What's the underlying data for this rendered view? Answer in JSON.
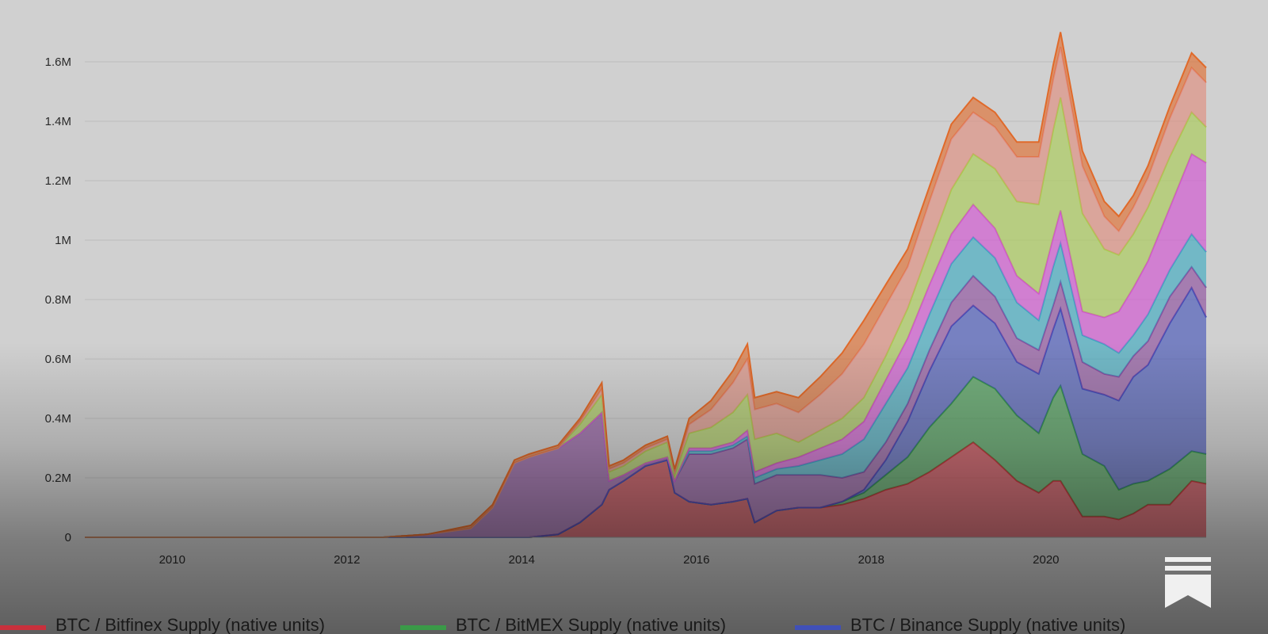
{
  "chart_data": {
    "type": "area",
    "stacked": true,
    "x": [
      "2009-01",
      "2011-06",
      "2012-06",
      "2012-12",
      "2013-06",
      "2013-09",
      "2013-12",
      "2014-02",
      "2014-06",
      "2014-09",
      "2014-12",
      "2015-01",
      "2015-03",
      "2015-06",
      "2015-09",
      "2015-10",
      "2015-12",
      "2016-03",
      "2016-06",
      "2016-08",
      "2016-09",
      "2016-12",
      "2017-03",
      "2017-06",
      "2017-09",
      "2017-12",
      "2018-03",
      "2018-06",
      "2018-09",
      "2018-12",
      "2019-03",
      "2019-06",
      "2019-09",
      "2019-12",
      "2020-02",
      "2020-03",
      "2020-06",
      "2020-09",
      "2020-11",
      "2021-01",
      "2021-03",
      "2021-06",
      "2021-09",
      "2021-11"
    ],
    "series": [
      {
        "name": "BTC / Bitfinex Supply (native units)",
        "color": "#c8303c",
        "values": [
          0,
          0,
          0,
          0,
          0,
          0,
          0,
          0,
          0.01,
          0.05,
          0.11,
          0.16,
          0.19,
          0.24,
          0.26,
          0.15,
          0.12,
          0.11,
          0.12,
          0.13,
          0.05,
          0.09,
          0.1,
          0.1,
          0.11,
          0.13,
          0.16,
          0.18,
          0.22,
          0.27,
          0.32,
          0.26,
          0.19,
          0.15,
          0.19,
          0.19,
          0.07,
          0.07,
          0.06,
          0.08,
          0.11,
          0.11,
          0.19,
          0.18
        ]
      },
      {
        "name": "BTC / BitMEX Supply (native units)",
        "color": "#3a9a48",
        "values": [
          0,
          0,
          0,
          0,
          0,
          0,
          0,
          0,
          0,
          0,
          0,
          0,
          0,
          0,
          0,
          0,
          0,
          0,
          0,
          0,
          0,
          0,
          0,
          0,
          0.01,
          0.02,
          0.05,
          0.09,
          0.15,
          0.18,
          0.22,
          0.24,
          0.22,
          0.2,
          0.28,
          0.32,
          0.21,
          0.17,
          0.1,
          0.1,
          0.08,
          0.12,
          0.1,
          0.1
        ]
      },
      {
        "name": "BTC / Binance Supply (native units)",
        "color": "#4050b8",
        "values": [
          0,
          0,
          0,
          0,
          0,
          0,
          0,
          0,
          0,
          0,
          0,
          0,
          0,
          0,
          0,
          0,
          0,
          0,
          0,
          0,
          0,
          0,
          0,
          0,
          0,
          0.01,
          0.05,
          0.12,
          0.19,
          0.26,
          0.24,
          0.22,
          0.18,
          0.2,
          0.23,
          0.26,
          0.22,
          0.24,
          0.3,
          0.36,
          0.39,
          0.49,
          0.55,
          0.46
        ]
      },
      {
        "name": "",
        "color": "#8a4a9c",
        "values": [
          0,
          0,
          0,
          0.01,
          0.03,
          0.1,
          0.25,
          0.27,
          0.29,
          0.3,
          0.31,
          0.03,
          0.02,
          0.01,
          0.01,
          0.04,
          0.16,
          0.17,
          0.18,
          0.2,
          0.13,
          0.12,
          0.11,
          0.11,
          0.08,
          0.06,
          0.06,
          0.06,
          0.07,
          0.08,
          0.1,
          0.09,
          0.08,
          0.08,
          0.08,
          0.09,
          0.09,
          0.07,
          0.08,
          0.07,
          0.08,
          0.09,
          0.07,
          0.1
        ]
      },
      {
        "name": "",
        "color": "#39a9c0",
        "values": [
          0,
          0,
          0,
          0,
          0,
          0,
          0,
          0,
          0,
          0,
          0,
          0,
          0,
          0,
          0,
          0,
          0.01,
          0.01,
          0.01,
          0.01,
          0.02,
          0.02,
          0.03,
          0.05,
          0.08,
          0.11,
          0.13,
          0.12,
          0.12,
          0.13,
          0.13,
          0.13,
          0.12,
          0.1,
          0.13,
          0.13,
          0.09,
          0.1,
          0.08,
          0.07,
          0.09,
          0.09,
          0.11,
          0.12
        ]
      },
      {
        "name": "",
        "color": "#d24ed2",
        "values": [
          0,
          0,
          0,
          0,
          0,
          0,
          0,
          0,
          0,
          0,
          0,
          0,
          0,
          0,
          0,
          0,
          0.01,
          0.01,
          0.01,
          0.02,
          0.02,
          0.02,
          0.03,
          0.04,
          0.05,
          0.06,
          0.08,
          0.1,
          0.1,
          0.1,
          0.11,
          0.1,
          0.09,
          0.09,
          0.1,
          0.11,
          0.08,
          0.09,
          0.14,
          0.16,
          0.18,
          0.21,
          0.27,
          0.3
        ]
      },
      {
        "name": "",
        "color": "#a8cc50",
        "values": [
          0,
          0,
          0,
          0,
          0,
          0,
          0,
          0,
          0,
          0.03,
          0.06,
          0.03,
          0.03,
          0.04,
          0.05,
          0.02,
          0.05,
          0.07,
          0.1,
          0.12,
          0.11,
          0.1,
          0.05,
          0.06,
          0.07,
          0.08,
          0.08,
          0.1,
          0.12,
          0.15,
          0.17,
          0.2,
          0.25,
          0.3,
          0.36,
          0.38,
          0.33,
          0.23,
          0.19,
          0.18,
          0.18,
          0.17,
          0.14,
          0.12
        ]
      },
      {
        "name": "",
        "color": "#e08a7a",
        "values": [
          0,
          0,
          0,
          0,
          0,
          0,
          0,
          0,
          0,
          0.01,
          0.02,
          0.01,
          0.01,
          0.01,
          0.01,
          0.01,
          0.03,
          0.06,
          0.1,
          0.12,
          0.1,
          0.1,
          0.1,
          0.12,
          0.15,
          0.18,
          0.17,
          0.14,
          0.16,
          0.17,
          0.14,
          0.14,
          0.15,
          0.16,
          0.17,
          0.17,
          0.16,
          0.11,
          0.08,
          0.09,
          0.1,
          0.13,
          0.15,
          0.15
        ]
      },
      {
        "name": "",
        "color": "#e06a2a",
        "values": [
          0,
          0,
          0,
          0,
          0.01,
          0.01,
          0.01,
          0.01,
          0.01,
          0.01,
          0.02,
          0.01,
          0.01,
          0.01,
          0.01,
          0.01,
          0.02,
          0.03,
          0.04,
          0.05,
          0.04,
          0.04,
          0.05,
          0.06,
          0.07,
          0.08,
          0.07,
          0.06,
          0.05,
          0.05,
          0.05,
          0.05,
          0.05,
          0.05,
          0.05,
          0.05,
          0.05,
          0.05,
          0.05,
          0.04,
          0.04,
          0.04,
          0.05,
          0.05
        ]
      }
    ],
    "y_unit": "M",
    "xlim": [
      "2009-01",
      "2021-11"
    ],
    "ylim": [
      0,
      1.7
    ],
    "yticks": [
      0,
      0.2,
      0.4,
      0.6,
      0.8,
      1.0,
      1.2,
      1.4,
      1.6
    ],
    "ytick_labels": [
      "0",
      "0.2M",
      "0.4M",
      "0.6M",
      "0.8M",
      "1M",
      "1.2M",
      "1.4M",
      "1.6M"
    ],
    "xticks": [
      "2010-01",
      "2012-01",
      "2014-01",
      "2016-01",
      "2018-01",
      "2020-01"
    ],
    "xtick_labels": [
      "2010",
      "2012",
      "2014",
      "2016",
      "2018",
      "2020"
    ],
    "grid": true,
    "legend_position": "bottom"
  },
  "icons": {
    "bookmark": "bookmark-icon"
  }
}
